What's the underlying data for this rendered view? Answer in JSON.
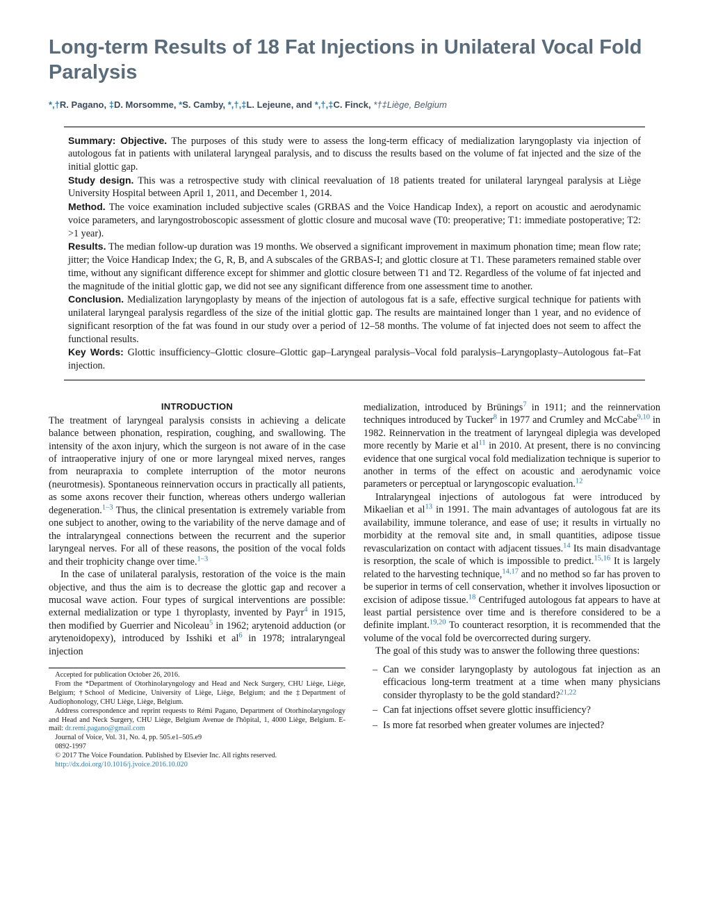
{
  "title": "Long-term Results of 18 Fat Injections in Unilateral Vocal Fold Paralysis",
  "authors_html": "<span class='sym'>*,†</span>R. Pagano, <span class='sym'>‡</span>D. Morsomme, <span class='sym'>*</span>S. Camby, <span class='sym'>*,†,‡</span>L. Lejeune, and <span class='sym'>*,†,‡</span>C. Finck, <span class='affil'>*†‡Liège, Belgium</span>",
  "abstract": {
    "summary_label": "Summary: Objective.",
    "summary": "The purposes of this study were to assess the long-term efficacy of medialization laryngoplasty via injection of autologous fat in patients with unilateral laryngeal paralysis, and to discuss the results based on the volume of fat injected and the size of the initial glottic gap.",
    "design_label": "Study design.",
    "design": "This was a retrospective study with clinical reevaluation of 18 patients treated for unilateral laryngeal paralysis at Liège University Hospital between April 1, 2011, and December 1, 2014.",
    "method_label": "Method.",
    "method": "The voice examination included subjective scales (GRBAS and the Voice Handicap Index), a report on acoustic and aerodynamic voice parameters, and laryngostroboscopic assessment of glottic closure and mucosal wave (T0: preoperative; T1: immediate postoperative; T2: >1 year).",
    "results_label": "Results.",
    "results": "The median follow-up duration was 19 months. We observed a significant improvement in maximum phonation time; mean flow rate; jitter; the Voice Handicap Index; the G, R, B, and A subscales of the GRBAS-I; and glottic closure at T1. These parameters remained stable over time, without any significant difference except for shimmer and glottic closure between T1 and T2. Regardless of the volume of fat injected and the magnitude of the initial glottic gap, we did not see any significant difference from one assessment time to another.",
    "conclusion_label": "Conclusion.",
    "conclusion": "Medialization laryngoplasty by means of the injection of autologous fat is a safe, effective surgical technique for patients with unilateral laryngeal paralysis regardless of the size of the initial glottic gap. The results are maintained longer than 1 year, and no evidence of significant resorption of the fat was found in our study over a period of 12–58 months. The volume of fat injected does not seem to affect the functional results.",
    "keywords_label": "Key Words:",
    "keywords": "Glottic insufficiency–Glottic closure–Glottic gap–Laryngeal paralysis–Vocal fold paralysis–Laryngoplasty–Autologous fat–Fat injection."
  },
  "intro_head": "INTRODUCTION",
  "col1": {
    "p1a": "The treatment of laryngeal paralysis consists in achieving a delicate balance between phonation, respiration, coughing, and swallowing. The intensity of the axon injury, which the surgeon is not aware of in the case of intraoperative injury of one or more laryngeal mixed nerves, ranges from neurapraxia to complete interruption of the motor neurons (neurotmesis). Spontaneous reinnervation occurs in practically all patients, as some axons recover their function, whereas others undergo wallerian degeneration.",
    "p1_ref1": "1–3",
    "p1b": " Thus, the clinical presentation is extremely variable from one subject to another, owing to the variability of the nerve damage and of the intralaryngeal connections between the recurrent and the superior laryngeal nerves. For all of these reasons, the position of the vocal folds and their trophicity change over time.",
    "p1_ref2": "1–3",
    "p2a": "In the case of unilateral paralysis, restoration of the voice is the main objective, and thus the aim is to decrease the glottic gap and recover a mucosal wave action. Four types of surgical interventions are possible: external medialization or type 1 thyroplasty, invented by Payr",
    "p2_ref1": "4",
    "p2b": " in 1915, then modified by Guerrier and Nicoleau",
    "p2_ref2": "5",
    "p2c": " in 1962; arytenoid adduction (or arytenoidopexy), introduced by Isshiki et al",
    "p2_ref3": "6",
    "p2d": " in 1978; intralaryngeal injection"
  },
  "col2": {
    "p1a": "medialization, introduced by Brünings",
    "p1_ref1": "7",
    "p1b": " in 1911; and the reinnervation techniques introduced by Tucker",
    "p1_ref2": "8",
    "p1c": " in 1977 and Crumley and McCabe",
    "p1_ref3": "9,10",
    "p1d": " in 1982. Reinnervation in the treatment of laryngeal diplegia was developed more recently by Marie et al",
    "p1_ref4": "11",
    "p1e": " in 2010. At present, there is no convincing evidence that one surgical vocal fold medialization technique is superior to another in terms of the effect on acoustic and aerodynamic voice parameters or perceptual or laryngoscopic evaluation.",
    "p1_ref5": "12",
    "p2a": "Intralaryngeal injections of autologous fat were introduced by Mikaelian et al",
    "p2_ref1": "13",
    "p2b": " in 1991. The main advantages of autologous fat are its availability, immune tolerance, and ease of use; it results in virtually no morbidity at the removal site and, in small quantities, adipose tissue revascularization on contact with adjacent tissues.",
    "p2_ref2": "14",
    "p2c": " Its main disadvantage is resorption, the scale of which is impossible to predict.",
    "p2_ref3": "15,16",
    "p2d": " It is largely related to the harvesting technique,",
    "p2_ref4": "14,17",
    "p2e": " and no method so far has proven to be superior in terms of cell conservation, whether it involves liposuction or excision of adipose tissue.",
    "p2_ref5": "18",
    "p2f": " Centrifuged autologous fat appears to have at least partial persistence over time and is therefore considered to be a definite implant.",
    "p2_ref6": "19,20",
    "p2g": " To counteract resorption, it is recommended that the volume of the vocal fold be overcorrected during surgery.",
    "p3": "The goal of this study was to answer the following three questions:",
    "q1a": "Can we consider laryngoplasty by autologous fat injection as an efficacious long-term treatment at a time when many physicians consider thyroplasty to be the gold standard?",
    "q1_ref": "21,22",
    "q2": "Can fat injections offset severe glottic insufficiency?",
    "q3": "Is more fat resorbed when greater volumes are injected?"
  },
  "footnotes": {
    "accepted": "Accepted for publication October 26, 2016.",
    "from": "From the *Department of Otorhinolaryngology and Head and Neck Surgery, CHU Liège, Liège, Belgium; †School of Medicine, University of Liège, Liège, Belgium; and the ‡Department of Audiophonology, CHU Liège, Liège, Belgium.",
    "corr_a": "Address correspondence and reprint requests to Rémi Pagano, Department of Otorhinolaryngology and Head and Neck Surgery, CHU Liège, Belgium Avenue de l'hôpital, 1, 4000 Liège, Belgium. E-mail: ",
    "corr_email": "dr.remi.pagano@gmail.com",
    "journal": "Journal of Voice, Vol. 31, No. 4, pp. 505.e1–505.e9",
    "issn": "0892-1997",
    "copyright": "© 2017 The Voice Foundation. Published by Elsevier Inc. All rights reserved.",
    "doi": "http://dx.doi.org/10.1016/j.jvoice.2016.10.020"
  }
}
